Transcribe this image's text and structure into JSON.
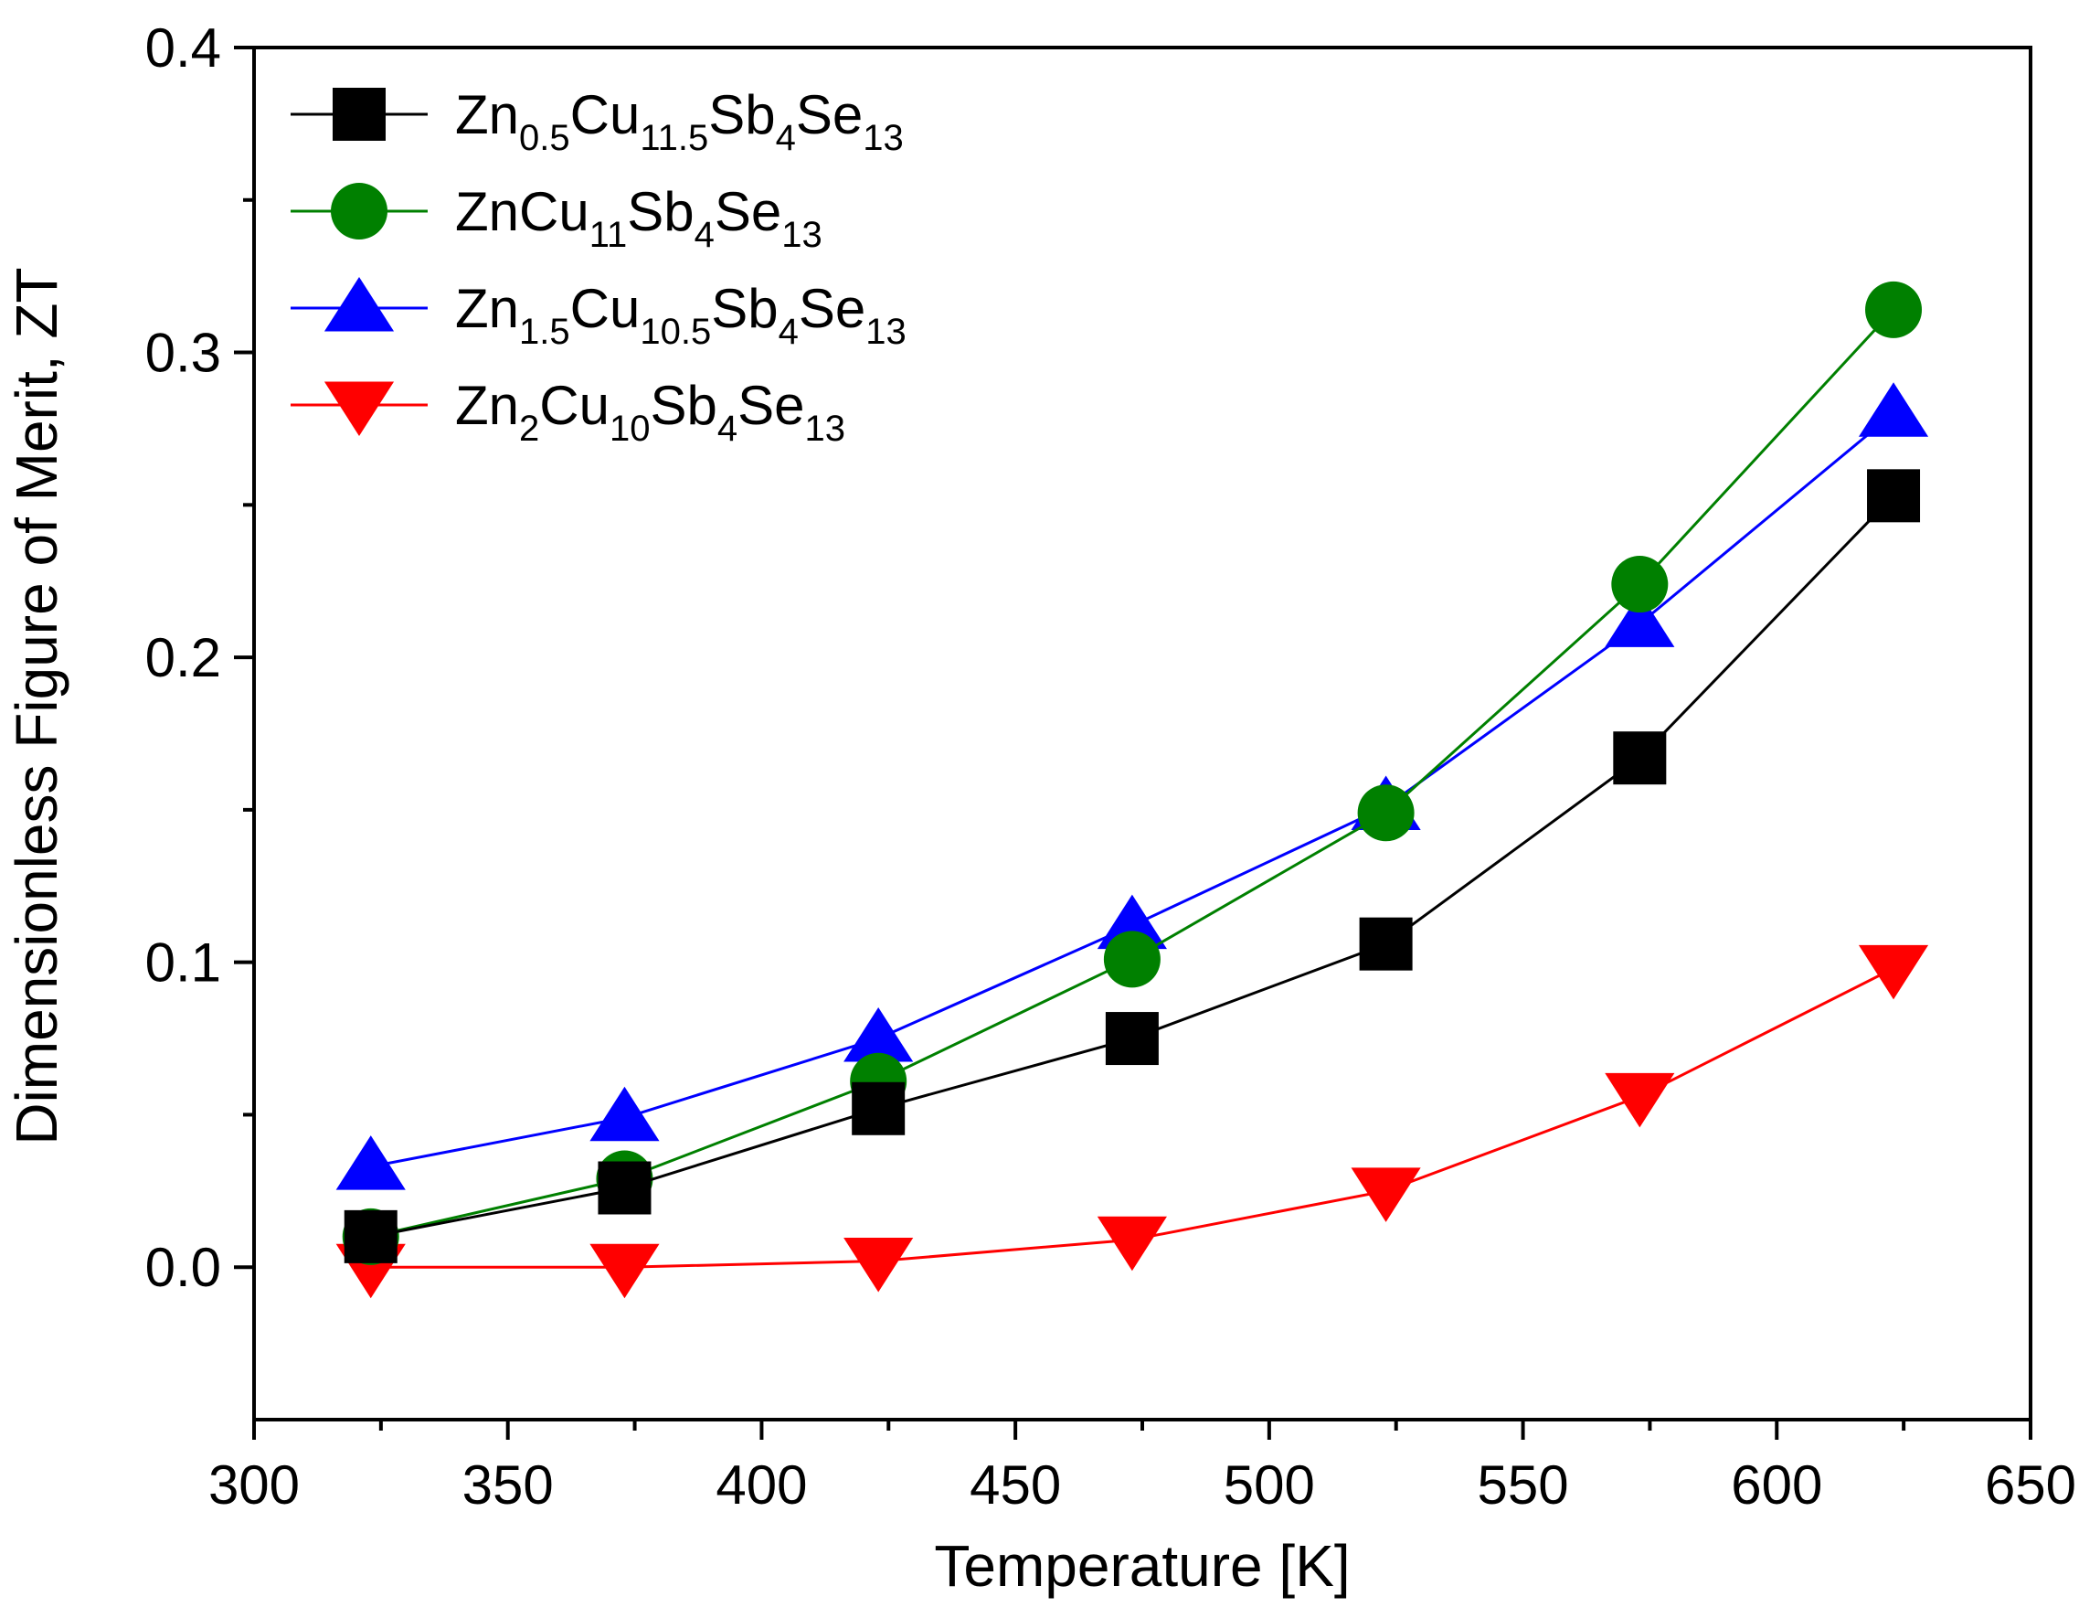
{
  "chart_data": {
    "type": "line",
    "title": "",
    "xlabel": "Temperature [K]",
    "ylabel": "Dimensionless Figure of Merit,  ZT",
    "xlim": [
      300,
      650
    ],
    "ylim": [
      -0.05,
      0.4
    ],
    "xticks": [
      300,
      350,
      400,
      450,
      500,
      550,
      600,
      650
    ],
    "xtick_labels": [
      "300",
      "350",
      "400",
      "450",
      "500",
      "550",
      "600",
      "650"
    ],
    "yticks": [
      0.0,
      0.1,
      0.2,
      0.3,
      0.4
    ],
    "ytick_labels": [
      "0.0",
      "0.1",
      "0.2",
      "0.3",
      "0.4"
    ],
    "grid": false,
    "legend_position": "top-left",
    "x": [
      323,
      373,
      423,
      473,
      523,
      573,
      623
    ],
    "series": [
      {
        "name": "Zn0.5Cu11.5Sb4Se13",
        "name_parts": [
          {
            "t": "Zn",
            "sub": false
          },
          {
            "t": "0.5",
            "sub": true
          },
          {
            "t": "Cu",
            "sub": false
          },
          {
            "t": "11.5",
            "sub": true
          },
          {
            "t": "Sb",
            "sub": false
          },
          {
            "t": "4",
            "sub": true
          },
          {
            "t": "Se",
            "sub": false
          },
          {
            "t": "13",
            "sub": true
          }
        ],
        "color": "#000000",
        "marker": "square",
        "values": [
          0.01,
          0.026,
          0.052,
          0.075,
          0.106,
          0.167,
          0.253
        ]
      },
      {
        "name": "ZnCu11Sb4Se13",
        "name_parts": [
          {
            "t": "ZnCu",
            "sub": false
          },
          {
            "t": "11",
            "sub": true
          },
          {
            "t": "Sb",
            "sub": false
          },
          {
            "t": "4",
            "sub": true
          },
          {
            "t": "Se",
            "sub": false
          },
          {
            "t": "13",
            "sub": true
          }
        ],
        "color": "#008000",
        "marker": "circle",
        "values": [
          0.01,
          0.029,
          0.061,
          0.101,
          0.149,
          0.224,
          0.314
        ]
      },
      {
        "name": "Zn1.5Cu10.5Sb4Se13",
        "name_parts": [
          {
            "t": "Zn",
            "sub": false
          },
          {
            "t": "1.5",
            "sub": true
          },
          {
            "t": "Cu",
            "sub": false
          },
          {
            "t": "10.5",
            "sub": true
          },
          {
            "t": "Sb",
            "sub": false
          },
          {
            "t": "4",
            "sub": true
          },
          {
            "t": "Se",
            "sub": false
          },
          {
            "t": "13",
            "sub": true
          }
        ],
        "color": "#0000ff",
        "marker": "triangle-up",
        "values": [
          0.033,
          0.049,
          0.075,
          0.112,
          0.151,
          0.211,
          0.28
        ]
      },
      {
        "name": "Zn2Cu10Sb4Se13",
        "name_parts": [
          {
            "t": "Zn",
            "sub": false
          },
          {
            "t": "2",
            "sub": true
          },
          {
            "t": "Cu",
            "sub": false
          },
          {
            "t": "10",
            "sub": true
          },
          {
            "t": "Sb",
            "sub": false
          },
          {
            "t": "4",
            "sub": true
          },
          {
            "t": "Se",
            "sub": false
          },
          {
            "t": "13",
            "sub": true
          }
        ],
        "color": "#ff0000",
        "marker": "triangle-down",
        "values": [
          0.0,
          0.0,
          0.002,
          0.009,
          0.025,
          0.056,
          0.098
        ]
      }
    ]
  }
}
